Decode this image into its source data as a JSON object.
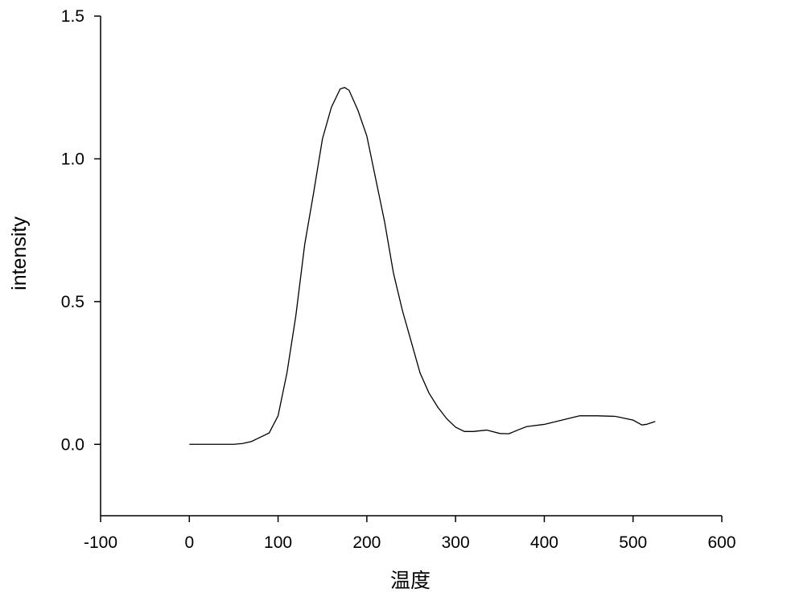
{
  "chart_data": {
    "type": "line",
    "x_label": "温度",
    "y_label": "intensity",
    "xlim": [
      -100,
      600
    ],
    "xticks": [
      -100,
      0,
      100,
      200,
      300,
      400,
      500,
      600
    ],
    "ylim": [
      -0.25,
      1.5
    ],
    "yticks": [
      {
        "value": 0,
        "label": "0.0"
      },
      0.5,
      {
        "value": 1,
        "label": "1.0"
      },
      1.5
    ],
    "series": [
      {
        "color": "#000000",
        "x": [
          0,
          50,
          60,
          70,
          80,
          90,
          100,
          110,
          120,
          130,
          140,
          150,
          160,
          170,
          175,
          180,
          190,
          200,
          210,
          220,
          230,
          240,
          250,
          260,
          270,
          280,
          290,
          300,
          310,
          320,
          335,
          350,
          360,
          370,
          380,
          400,
          420,
          440,
          460,
          480,
          500,
          510,
          515,
          525
        ],
        "values": [
          0,
          0,
          0.003,
          0.01,
          0.025,
          0.04,
          0.1,
          0.25,
          0.45,
          0.7,
          0.88,
          1.07,
          1.18,
          1.245,
          1.25,
          1.24,
          1.17,
          1.08,
          0.93,
          0.78,
          0.6,
          0.47,
          0.36,
          0.25,
          0.18,
          0.13,
          0.09,
          0.06,
          0.045,
          0.045,
          0.05,
          0.038,
          0.037,
          0.05,
          0.062,
          0.07,
          0.085,
          0.1,
          0.1,
          0.098,
          0.085,
          0.068,
          0.07,
          0.08
        ]
      }
    ]
  }
}
